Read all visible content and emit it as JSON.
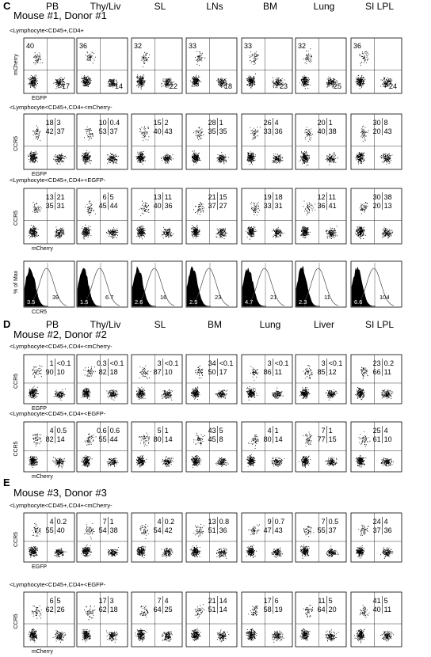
{
  "panels": [
    {
      "letter": "C",
      "subtitle": "Mouse #1, Donor #1",
      "columns": [
        "PB",
        "Thy/Liv",
        "SL",
        "LNs",
        "BM",
        "Lung",
        "SI LPL"
      ],
      "rows": [
        {
          "kind": "dot2",
          "gate": "<Lymphocyte<CD45+,CD4+",
          "ylabel": "mCherry",
          "xlabel": "EGFP",
          "cells": [
            {
              "tl": "40",
              "br": "17"
            },
            {
              "tl": "36",
              "br": "14"
            },
            {
              "tl": "32",
              "br": "22"
            },
            {
              "tl": "33",
              "br": "18"
            },
            {
              "tl": "33",
              "br": "23"
            },
            {
              "tl": "32",
              "br": "25"
            },
            {
              "tl": "36",
              "br": "24"
            }
          ]
        },
        {
          "kind": "dot4",
          "gate": "<Lymphocyte<CD45+,CD4+<mCherry-",
          "ylabel": "CCR5",
          "xlabel": "EGFP",
          "cells": [
            {
              "q": [
                "18",
                "3",
                "42",
                "37"
              ]
            },
            {
              "q": [
                "10",
                "0.4",
                "53",
                "37"
              ]
            },
            {
              "q": [
                "15",
                "2",
                "40",
                "43"
              ]
            },
            {
              "q": [
                "28",
                "1",
                "35",
                "35"
              ]
            },
            {
              "q": [
                "26",
                "4",
                "33",
                "36"
              ]
            },
            {
              "q": [
                "20",
                "1",
                "40",
                "38"
              ]
            },
            {
              "q": [
                "30",
                "8",
                "20",
                "43"
              ]
            }
          ]
        },
        {
          "kind": "dot4",
          "gate": "<Lymphocyte<CD45+,CD4+<EGFP-",
          "ylabel": "CCR5",
          "xlabel": "mCherry",
          "cells": [
            {
              "q": [
                "13",
                "21",
                "35",
                "31"
              ]
            },
            {
              "q": [
                "6",
                "5",
                "45",
                "44"
              ]
            },
            {
              "q": [
                "13",
                "11",
                "40",
                "36"
              ]
            },
            {
              "q": [
                "21",
                "15",
                "37",
                "27"
              ]
            },
            {
              "q": [
                "19",
                "18",
                "33",
                "31"
              ]
            },
            {
              "q": [
                "12",
                "11",
                "36",
                "41"
              ]
            },
            {
              "q": [
                "30",
                "38",
                "20",
                "13"
              ]
            }
          ]
        },
        {
          "kind": "hist",
          "gate": "",
          "ylabel": "% of Max",
          "xlabel": "CCR5",
          "cells": [
            {
              "a": "3.5",
              "b": "39"
            },
            {
              "a": "1.5",
              "b": "6.7"
            },
            {
              "a": "2.6",
              "b": "16"
            },
            {
              "a": "2.5",
              "b": "23"
            },
            {
              "a": "4.7",
              "b": "21"
            },
            {
              "a": "2.3",
              "b": "11"
            },
            {
              "a": "6.6",
              "b": "104"
            }
          ]
        }
      ]
    },
    {
      "letter": "D",
      "subtitle": "Mouse #2, Donor #2",
      "columns": [
        "PB",
        "Thy/Liv",
        "SL",
        "BM",
        "Lung",
        "Liver",
        "SI LPL"
      ],
      "rows": [
        {
          "kind": "dot4",
          "gate": "<Lymphocyte<CD45+,CD4+<mCherry-",
          "ylabel": "CCR5",
          "xlabel": "EGFP",
          "cells": [
            {
              "q": [
                "1",
                "<0.1",
                "90",
                "10"
              ]
            },
            {
              "q": [
                "0.3",
                "<0.1",
                "82",
                "18"
              ]
            },
            {
              "q": [
                "3",
                "<0.1",
                "87",
                "10"
              ]
            },
            {
              "q": [
                "34",
                "<0.1",
                "50",
                "17"
              ]
            },
            {
              "q": [
                "3",
                "<0.1",
                "86",
                "11"
              ]
            },
            {
              "q": [
                "3",
                "<0.1",
                "85",
                "12"
              ]
            },
            {
              "q": [
                "23",
                "0.2",
                "66",
                "11"
              ]
            }
          ]
        },
        {
          "kind": "dot4",
          "gate": "<Lymphocyte<CD45+,CD4+<EGFP-",
          "ylabel": "CCR5",
          "xlabel": "mCherry",
          "cells": [
            {
              "q": [
                "4",
                "0.5",
                "82",
                "14"
              ]
            },
            {
              "q": [
                "0.6",
                "0.6",
                "55",
                "44"
              ]
            },
            {
              "q": [
                "5",
                "1",
                "80",
                "14"
              ]
            },
            {
              "q": [
                "43",
                "5",
                "45",
                "8"
              ]
            },
            {
              "q": [
                "4",
                "1",
                "80",
                "14"
              ]
            },
            {
              "q": [
                "7",
                "1",
                "77",
                "15"
              ]
            },
            {
              "q": [
                "25",
                "4",
                "61",
                "10"
              ]
            }
          ]
        }
      ]
    },
    {
      "letter": "E",
      "subtitle": "Mouse #3, Donor #3",
      "columns": [],
      "rows": [
        {
          "kind": "dot4",
          "gate": "<Lymphocyte<CD45+,CD4+<mCherry-",
          "ylabel": "CCR5",
          "xlabel": "EGFP",
          "cells": [
            {
              "q": [
                "4",
                "0.2",
                "55",
                "40"
              ]
            },
            {
              "q": [
                "7",
                "1",
                "54",
                "38"
              ]
            },
            {
              "q": [
                "4",
                "0.2",
                "54",
                "42"
              ]
            },
            {
              "q": [
                "13",
                "0.8",
                "51",
                "36"
              ]
            },
            {
              "q": [
                "9",
                "0.7",
                "47",
                "43"
              ]
            },
            {
              "q": [
                "7",
                "0.5",
                "55",
                "37"
              ]
            },
            {
              "q": [
                "24",
                "4",
                "37",
                "36"
              ]
            }
          ]
        },
        {
          "kind": "dot4",
          "gate": "<Lymphocyte<CD45+,CD4+<EGFP-",
          "ylabel": "CCR5",
          "xlabel": "mCherry",
          "cells": [
            {
              "q": [
                "6",
                "5",
                "62",
                "26"
              ]
            },
            {
              "q": [
                "17",
                "3",
                "62",
                "18"
              ]
            },
            {
              "q": [
                "7",
                "4",
                "64",
                "25"
              ]
            },
            {
              "q": [
                "21",
                "14",
                "51",
                "14"
              ]
            },
            {
              "q": [
                "17",
                "6",
                "58",
                "19"
              ]
            },
            {
              "q": [
                "11",
                "5",
                "64",
                "20"
              ]
            },
            {
              "q": [
                "41",
                "5",
                "40",
                "11"
              ]
            }
          ]
        }
      ]
    }
  ]
}
